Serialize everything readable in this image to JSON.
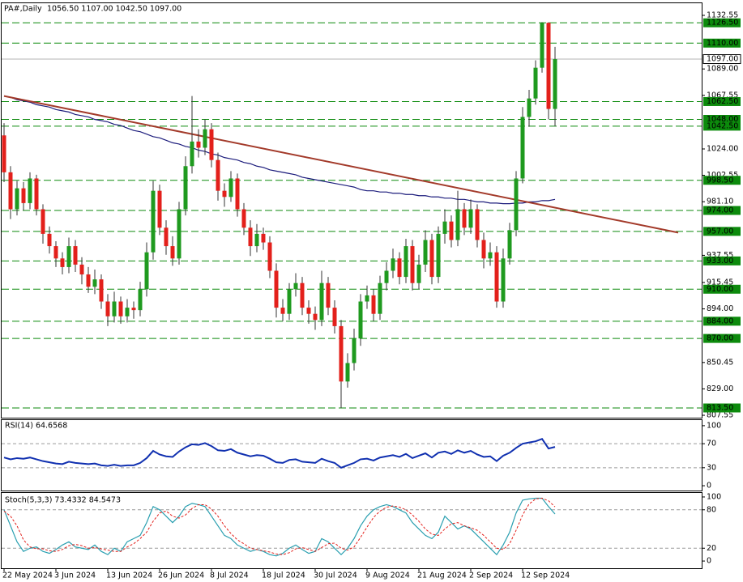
{
  "chart_data": [
    {
      "type": "candlestick",
      "title": "PA#,Daily",
      "subtitle": "1056.50 1107.00 1042.50 1097.00",
      "categories": [
        "22 May 2024",
        null,
        null,
        null,
        null,
        null,
        null,
        null,
        "3 Jun 2024",
        null,
        null,
        null,
        null,
        null,
        null,
        null,
        "13 Jun 2024",
        null,
        null,
        null,
        null,
        null,
        null,
        null,
        "26 Jun 2024",
        null,
        null,
        null,
        null,
        null,
        null,
        null,
        "8 Jul 2024",
        null,
        null,
        null,
        null,
        null,
        null,
        null,
        "18 Jul 2024",
        null,
        null,
        null,
        null,
        null,
        null,
        null,
        "30 Jul 2024",
        null,
        null,
        null,
        null,
        null,
        null,
        null,
        "9 Aug 2024",
        null,
        null,
        null,
        null,
        null,
        null,
        null,
        "21 Aug 2024",
        null,
        null,
        null,
        null,
        null,
        null,
        null,
        "2 Sep 2024",
        null,
        null,
        null,
        null,
        null,
        null,
        null,
        "12 Sep 2024",
        null,
        null,
        null,
        null,
        null
      ],
      "open": [
        1035,
        1005,
        975,
        992,
        980,
        1000,
        975,
        955,
        945,
        935,
        928,
        945,
        930,
        922,
        912,
        918,
        900,
        888,
        900,
        888,
        895,
        893,
        910,
        940,
        990,
        960,
        945,
        935,
        975,
        1010,
        1030,
        1025,
        1040,
        1015,
        990,
        985,
        1000,
        975,
        960,
        945,
        955,
        948,
        925,
        895,
        890,
        910,
        915,
        895,
        890,
        885,
        915,
        895,
        880,
        835,
        850,
        870,
        900,
        905,
        890,
        915,
        925,
        935,
        920,
        945,
        915,
        930,
        950,
        920,
        955,
        965,
        950,
        975,
        960,
        975,
        950,
        935,
        940,
        900,
        935,
        958,
        1000,
        1050,
        1065,
        1090,
        1126.5,
        1056.5
      ],
      "high": [
        1045,
        1010,
        998,
        997,
        1005,
        1003,
        979,
        961,
        949,
        940,
        952,
        950,
        936,
        928,
        926,
        922,
        906,
        908,
        904,
        902,
        900,
        916,
        948,
        998,
        995,
        966,
        953,
        981,
        1018,
        1067,
        1040,
        1048,
        1045,
        1021,
        996,
        1006,
        1004,
        980,
        966,
        963,
        960,
        953,
        931,
        902,
        915,
        923,
        920,
        901,
        896,
        925,
        920,
        901,
        885,
        858,
        878,
        906,
        913,
        910,
        921,
        932,
        943,
        940,
        951,
        950,
        938,
        958,
        955,
        961,
        975,
        970,
        990,
        980,
        983,
        979,
        956,
        948,
        945,
        943,
        964,
        1006,
        1058,
        1072,
        1096,
        1127,
        1127,
        1107
      ],
      "low": [
        997,
        967,
        970,
        974,
        975,
        970,
        947,
        939,
        928,
        922,
        923,
        924,
        914,
        907,
        906,
        894,
        880,
        883,
        882,
        883,
        886,
        888,
        904,
        934,
        954,
        938,
        929,
        930,
        970,
        1004,
        1017,
        1019,
        1009,
        982,
        977,
        981,
        969,
        954,
        937,
        940,
        942,
        919,
        887,
        884,
        885,
        904,
        889,
        882,
        877,
        880,
        889,
        874,
        813.5,
        830,
        844,
        864,
        894,
        884,
        885,
        909,
        919,
        914,
        915,
        909,
        910,
        924,
        914,
        915,
        947,
        944,
        945,
        954,
        955,
        944,
        927,
        929,
        895,
        895,
        930,
        953,
        996,
        1042,
        1060,
        1086,
        1048,
        1042.5
      ],
      "close": [
        1005,
        975,
        992,
        980,
        1000,
        975,
        955,
        945,
        935,
        928,
        945,
        930,
        922,
        912,
        918,
        900,
        888,
        900,
        888,
        895,
        893,
        910,
        940,
        990,
        960,
        945,
        935,
        975,
        1010,
        1030,
        1025,
        1040,
        1015,
        990,
        985,
        1000,
        975,
        960,
        945,
        955,
        948,
        925,
        895,
        890,
        910,
        915,
        895,
        890,
        885,
        915,
        895,
        880,
        835,
        850,
        870,
        900,
        905,
        890,
        915,
        925,
        935,
        920,
        945,
        915,
        930,
        950,
        920,
        955,
        965,
        950,
        975,
        960,
        975,
        950,
        935,
        940,
        900,
        935,
        958,
        1000,
        1050,
        1065,
        1090,
        1126.5,
        1056.5,
        1097
      ],
      "up_color": "#1f9a1f",
      "down_color": "#e3201b",
      "wick_color": "#333333",
      "ma": {
        "color": "#1c1c7c",
        "values": [
          1067,
          1066,
          1064,
          1063,
          1062,
          1060,
          1059,
          1058,
          1056,
          1055,
          1054,
          1052,
          1051,
          1050,
          1048,
          1047,
          1046,
          1044,
          1043,
          1041,
          1039,
          1038,
          1036,
          1034,
          1033,
          1031,
          1029,
          1028,
          1026,
          1025,
          1023,
          1022,
          1020,
          1019,
          1017,
          1016,
          1015,
          1013,
          1012,
          1010,
          1009,
          1007,
          1006,
          1005,
          1004,
          1003,
          1001,
          1000,
          999,
          998,
          997,
          996,
          995,
          994,
          993,
          991,
          990,
          990,
          989,
          989,
          988,
          988,
          987,
          987,
          986,
          986,
          985,
          985,
          984,
          984,
          983,
          983,
          982,
          981,
          981,
          980,
          980,
          979.5,
          979.5,
          980,
          980,
          981,
          981,
          982,
          982,
          983
        ]
      },
      "trendline": {
        "color": "#a33a2a",
        "x": [
          0,
          104
        ],
        "values": [
          1067,
          956
        ]
      },
      "ylim": [
        805.6,
        1142.4
      ],
      "yticks": [
        1132.55,
        {
          "value": 1089,
          "label": "1089.00"
        },
        1067.55,
        {
          "value": 1024,
          "label": "1024.00"
        },
        1002.55,
        {
          "value": 981.1,
          "label": "981.10"
        },
        937.55,
        915.45,
        {
          "value": 894,
          "label": "894.00"
        },
        850.45,
        {
          "value": 829,
          "label": "829.00"
        },
        807.55
      ],
      "level_color": "#0c8a0c",
      "levels": [
        {
          "value": 1126.5,
          "label": "1126.50"
        },
        {
          "value": 1110,
          "label": "1110.00"
        },
        {
          "value": 1062.5,
          "label": "1062.50"
        },
        {
          "value": 1048,
          "label": "1048.00"
        },
        {
          "value": 1042.5,
          "label": "1042.50"
        },
        {
          "value": 998.5,
          "label": "998.50"
        },
        {
          "value": 974,
          "label": "974.00"
        },
        {
          "value": 957,
          "label": "957.00"
        },
        {
          "value": 933,
          "label": "933.00"
        },
        {
          "value": 910,
          "label": "910.00"
        },
        {
          "value": 884,
          "label": "884.00"
        },
        {
          "value": 870,
          "label": "870.00"
        },
        {
          "value": 813.5,
          "label": "813.50"
        }
      ],
      "current": {
        "value": 1097,
        "label": "1097.00",
        "color": "#b4b4b4"
      }
    },
    {
      "type": "line",
      "title": "RSI(14) 64.6568",
      "series": [
        {
          "color": "#1030b0",
          "values": [
            47,
            44,
            46,
            45,
            47,
            44,
            41,
            39,
            37,
            36,
            40,
            38,
            37,
            36,
            37,
            34,
            33,
            35,
            33,
            34,
            34,
            38,
            46,
            58,
            52,
            49,
            48,
            57,
            64,
            69,
            68,
            71,
            66,
            59,
            58,
            61,
            55,
            52,
            49,
            51,
            50,
            45,
            39,
            38,
            43,
            44,
            40,
            39,
            38,
            45,
            41,
            38,
            30,
            34,
            38,
            44,
            45,
            42,
            47,
            49,
            51,
            48,
            53,
            46,
            50,
            54,
            47,
            55,
            57,
            53,
            59,
            55,
            58,
            52,
            48,
            49,
            41,
            50,
            55,
            63,
            70,
            72,
            74,
            78,
            62,
            64.6568
          ]
        }
      ],
      "ylim": [
        -8,
        109.3
      ],
      "yticks": [
        0,
        30,
        70,
        100
      ],
      "levels": [
        30,
        70
      ]
    },
    {
      "type": "line",
      "title": "Stoch(5,3,3) 73.4332 84.5473",
      "series": [
        {
          "color": "#2a9fb0",
          "values": [
            80,
            55,
            30,
            15,
            20,
            22,
            15,
            12,
            18,
            25,
            30,
            22,
            20,
            18,
            25,
            15,
            10,
            20,
            15,
            30,
            35,
            40,
            60,
            85,
            80,
            70,
            60,
            70,
            85,
            90,
            88,
            85,
            70,
            55,
            40,
            35,
            25,
            20,
            15,
            18,
            15,
            10,
            8,
            12,
            20,
            25,
            18,
            12,
            15,
            35,
            30,
            20,
            10,
            20,
            35,
            55,
            70,
            80,
            85,
            88,
            85,
            80,
            75,
            60,
            50,
            40,
            35,
            45,
            70,
            60,
            50,
            55,
            50,
            40,
            30,
            20,
            10,
            25,
            45,
            75,
            95,
            97,
            98,
            98,
            85,
            73.4332
          ]
        },
        {
          "color": "#e3201b",
          "dash": true,
          "values": [
            78,
            70,
            55,
            33,
            22,
            19,
            19,
            16,
            15,
            18,
            24,
            26,
            24,
            20,
            21,
            19,
            17,
            15,
            15,
            22,
            27,
            35,
            45,
            62,
            75,
            78,
            70,
            67,
            72,
            82,
            88,
            88,
            81,
            70,
            55,
            43,
            33,
            27,
            20,
            18,
            16,
            14,
            11,
            10,
            13,
            19,
            21,
            18,
            15,
            21,
            27,
            28,
            20,
            17,
            22,
            37,
            53,
            68,
            78,
            84,
            86,
            84,
            80,
            72,
            62,
            50,
            42,
            40,
            50,
            58,
            60,
            55,
            52,
            48,
            40,
            30,
            20,
            18,
            27,
            48,
            72,
            89,
            97,
            98,
            94,
            84.5473
          ]
        }
      ],
      "ylim": [
        -11.25,
        106.25
      ],
      "yticks": [
        0,
        20,
        80,
        100
      ],
      "levels": [
        20,
        80
      ]
    }
  ]
}
